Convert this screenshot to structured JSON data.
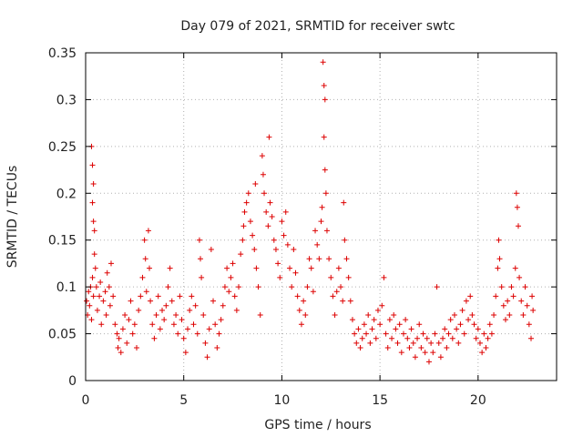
{
  "chart_data": {
    "type": "scatter",
    "title": "Day 079 of 2021, SRMTID for receiver swtc",
    "xlabel": "GPS time / hours",
    "ylabel": "SRMTID / TECUs",
    "xlim": [
      0,
      24
    ],
    "ylim": [
      0,
      0.35
    ],
    "x_ticks": [
      0,
      5,
      10,
      15,
      20
    ],
    "x_tick_labels": [
      "0",
      "5",
      "10",
      "15",
      "20"
    ],
    "y_ticks": [
      0,
      0.05,
      0.1,
      0.15,
      0.2,
      0.25,
      0.3,
      0.35
    ],
    "y_tick_labels": [
      "0",
      "0.05",
      "0.1",
      "0.15",
      "0.2",
      "0.25",
      "0.3",
      "0.35"
    ],
    "grid": true,
    "marker": "+",
    "color": "#dd0000",
    "series": [
      {
        "name": "SRMTID",
        "points": [
          [
            0.05,
            0.085
          ],
          [
            0.1,
            0.07
          ],
          [
            0.15,
            0.095
          ],
          [
            0.2,
            0.08
          ],
          [
            0.25,
            0.1
          ],
          [
            0.3,
            0.065
          ],
          [
            0.35,
            0.11
          ],
          [
            0.4,
            0.09
          ],
          [
            0.3,
            0.25
          ],
          [
            0.35,
            0.23
          ],
          [
            0.4,
            0.21
          ],
          [
            0.35,
            0.19
          ],
          [
            0.4,
            0.17
          ],
          [
            0.45,
            0.16
          ],
          [
            0.45,
            0.135
          ],
          [
            0.5,
            0.12
          ],
          [
            0.55,
            0.1
          ],
          [
            0.6,
            0.075
          ],
          [
            0.7,
            0.09
          ],
          [
            0.75,
            0.105
          ],
          [
            0.8,
            0.06
          ],
          [
            0.9,
            0.085
          ],
          [
            1.0,
            0.095
          ],
          [
            1.05,
            0.07
          ],
          [
            1.1,
            0.115
          ],
          [
            1.2,
            0.1
          ],
          [
            1.25,
            0.08
          ],
          [
            1.3,
            0.125
          ],
          [
            1.4,
            0.09
          ],
          [
            1.5,
            0.06
          ],
          [
            1.6,
            0.05
          ],
          [
            1.65,
            0.035
          ],
          [
            1.7,
            0.045
          ],
          [
            1.8,
            0.03
          ],
          [
            1.9,
            0.055
          ],
          [
            2.0,
            0.07
          ],
          [
            2.1,
            0.04
          ],
          [
            2.2,
            0.065
          ],
          [
            2.3,
            0.085
          ],
          [
            2.4,
            0.05
          ],
          [
            2.5,
            0.06
          ],
          [
            2.6,
            0.035
          ],
          [
            2.7,
            0.075
          ],
          [
            2.8,
            0.09
          ],
          [
            2.9,
            0.11
          ],
          [
            3.0,
            0.15
          ],
          [
            3.05,
            0.13
          ],
          [
            3.1,
            0.095
          ],
          [
            3.2,
            0.16
          ],
          [
            3.25,
            0.12
          ],
          [
            3.3,
            0.085
          ],
          [
            3.4,
            0.06
          ],
          [
            3.5,
            0.045
          ],
          [
            3.6,
            0.07
          ],
          [
            3.7,
            0.09
          ],
          [
            3.8,
            0.055
          ],
          [
            3.9,
            0.075
          ],
          [
            4.0,
            0.065
          ],
          [
            4.1,
            0.08
          ],
          [
            4.2,
            0.1
          ],
          [
            4.3,
            0.12
          ],
          [
            4.4,
            0.085
          ],
          [
            4.5,
            0.06
          ],
          [
            4.6,
            0.07
          ],
          [
            4.7,
            0.05
          ],
          [
            4.8,
            0.09
          ],
          [
            4.9,
            0.065
          ],
          [
            5.0,
            0.045
          ],
          [
            5.1,
            0.03
          ],
          [
            5.2,
            0.055
          ],
          [
            5.3,
            0.075
          ],
          [
            5.4,
            0.09
          ],
          [
            5.5,
            0.06
          ],
          [
            5.6,
            0.08
          ],
          [
            5.7,
            0.05
          ],
          [
            5.8,
            0.15
          ],
          [
            5.85,
            0.13
          ],
          [
            5.9,
            0.11
          ],
          [
            6.0,
            0.07
          ],
          [
            6.1,
            0.04
          ],
          [
            6.2,
            0.025
          ],
          [
            6.3,
            0.055
          ],
          [
            6.4,
            0.14
          ],
          [
            6.5,
            0.085
          ],
          [
            6.6,
            0.06
          ],
          [
            6.7,
            0.035
          ],
          [
            6.8,
            0.05
          ],
          [
            6.9,
            0.065
          ],
          [
            7.0,
            0.08
          ],
          [
            7.1,
            0.1
          ],
          [
            7.2,
            0.12
          ],
          [
            7.3,
            0.095
          ],
          [
            7.4,
            0.11
          ],
          [
            7.5,
            0.125
          ],
          [
            7.6,
            0.09
          ],
          [
            7.7,
            0.075
          ],
          [
            7.8,
            0.1
          ],
          [
            7.9,
            0.135
          ],
          [
            8.0,
            0.15
          ],
          [
            8.05,
            0.165
          ],
          [
            8.1,
            0.18
          ],
          [
            8.2,
            0.19
          ],
          [
            8.3,
            0.2
          ],
          [
            8.4,
            0.17
          ],
          [
            8.5,
            0.155
          ],
          [
            8.6,
            0.14
          ],
          [
            8.65,
            0.21
          ],
          [
            8.7,
            0.12
          ],
          [
            8.8,
            0.1
          ],
          [
            8.9,
            0.07
          ],
          [
            9.0,
            0.24
          ],
          [
            9.05,
            0.22
          ],
          [
            9.1,
            0.2
          ],
          [
            9.2,
            0.18
          ],
          [
            9.3,
            0.165
          ],
          [
            9.35,
            0.26
          ],
          [
            9.4,
            0.19
          ],
          [
            9.5,
            0.175
          ],
          [
            9.6,
            0.15
          ],
          [
            9.7,
            0.14
          ],
          [
            9.8,
            0.125
          ],
          [
            9.9,
            0.11
          ],
          [
            10.0,
            0.17
          ],
          [
            10.1,
            0.155
          ],
          [
            10.2,
            0.18
          ],
          [
            10.3,
            0.145
          ],
          [
            10.4,
            0.12
          ],
          [
            10.5,
            0.1
          ],
          [
            10.6,
            0.14
          ],
          [
            10.7,
            0.115
          ],
          [
            10.8,
            0.09
          ],
          [
            10.9,
            0.075
          ],
          [
            11.0,
            0.06
          ],
          [
            11.1,
            0.085
          ],
          [
            11.2,
            0.07
          ],
          [
            11.3,
            0.1
          ],
          [
            11.4,
            0.13
          ],
          [
            11.5,
            0.12
          ],
          [
            11.6,
            0.095
          ],
          [
            11.7,
            0.16
          ],
          [
            11.8,
            0.145
          ],
          [
            11.9,
            0.13
          ],
          [
            12.0,
            0.17
          ],
          [
            12.05,
            0.185
          ],
          [
            12.1,
            0.34
          ],
          [
            12.15,
            0.315
          ],
          [
            12.2,
            0.3
          ],
          [
            12.15,
            0.26
          ],
          [
            12.2,
            0.225
          ],
          [
            12.25,
            0.2
          ],
          [
            12.3,
            0.16
          ],
          [
            12.4,
            0.13
          ],
          [
            12.5,
            0.11
          ],
          [
            12.6,
            0.09
          ],
          [
            12.7,
            0.07
          ],
          [
            12.8,
            0.095
          ],
          [
            12.9,
            0.12
          ],
          [
            13.0,
            0.1
          ],
          [
            13.1,
            0.085
          ],
          [
            13.15,
            0.19
          ],
          [
            13.2,
            0.15
          ],
          [
            13.3,
            0.13
          ],
          [
            13.4,
            0.11
          ],
          [
            13.5,
            0.085
          ],
          [
            13.6,
            0.065
          ],
          [
            13.7,
            0.05
          ],
          [
            13.8,
            0.04
          ],
          [
            13.9,
            0.055
          ],
          [
            14.0,
            0.035
          ],
          [
            14.1,
            0.045
          ],
          [
            14.2,
            0.06
          ],
          [
            14.3,
            0.05
          ],
          [
            14.4,
            0.07
          ],
          [
            14.5,
            0.04
          ],
          [
            14.6,
            0.055
          ],
          [
            14.7,
            0.065
          ],
          [
            14.8,
            0.045
          ],
          [
            14.9,
            0.075
          ],
          [
            15.0,
            0.06
          ],
          [
            15.1,
            0.08
          ],
          [
            15.2,
            0.11
          ],
          [
            15.3,
            0.05
          ],
          [
            15.4,
            0.035
          ],
          [
            15.5,
            0.065
          ],
          [
            15.6,
            0.045
          ],
          [
            15.7,
            0.07
          ],
          [
            15.8,
            0.055
          ],
          [
            15.9,
            0.04
          ],
          [
            16.0,
            0.06
          ],
          [
            16.1,
            0.03
          ],
          [
            16.2,
            0.05
          ],
          [
            16.3,
            0.065
          ],
          [
            16.4,
            0.045
          ],
          [
            16.5,
            0.035
          ],
          [
            16.6,
            0.055
          ],
          [
            16.7,
            0.04
          ],
          [
            16.8,
            0.025
          ],
          [
            16.9,
            0.045
          ],
          [
            17.0,
            0.06
          ],
          [
            17.1,
            0.035
          ],
          [
            17.2,
            0.05
          ],
          [
            17.3,
            0.03
          ],
          [
            17.4,
            0.045
          ],
          [
            17.5,
            0.02
          ],
          [
            17.6,
            0.04
          ],
          [
            17.7,
            0.03
          ],
          [
            17.8,
            0.05
          ],
          [
            17.9,
            0.1
          ],
          [
            18.0,
            0.04
          ],
          [
            18.1,
            0.025
          ],
          [
            18.2,
            0.045
          ],
          [
            18.3,
            0.055
          ],
          [
            18.4,
            0.035
          ],
          [
            18.5,
            0.05
          ],
          [
            18.6,
            0.065
          ],
          [
            18.7,
            0.045
          ],
          [
            18.8,
            0.07
          ],
          [
            18.9,
            0.055
          ],
          [
            19.0,
            0.04
          ],
          [
            19.1,
            0.06
          ],
          [
            19.2,
            0.075
          ],
          [
            19.3,
            0.05
          ],
          [
            19.4,
            0.085
          ],
          [
            19.5,
            0.065
          ],
          [
            19.6,
            0.09
          ],
          [
            19.7,
            0.07
          ],
          [
            19.8,
            0.06
          ],
          [
            19.9,
            0.045
          ],
          [
            20.0,
            0.055
          ],
          [
            20.1,
            0.04
          ],
          [
            20.2,
            0.03
          ],
          [
            20.3,
            0.05
          ],
          [
            20.4,
            0.035
          ],
          [
            20.5,
            0.045
          ],
          [
            20.6,
            0.06
          ],
          [
            20.7,
            0.05
          ],
          [
            20.8,
            0.07
          ],
          [
            20.9,
            0.09
          ],
          [
            21.0,
            0.12
          ],
          [
            21.05,
            0.15
          ],
          [
            21.1,
            0.13
          ],
          [
            21.2,
            0.1
          ],
          [
            21.3,
            0.08
          ],
          [
            21.4,
            0.065
          ],
          [
            21.5,
            0.085
          ],
          [
            21.6,
            0.07
          ],
          [
            21.7,
            0.1
          ],
          [
            21.8,
            0.09
          ],
          [
            21.9,
            0.12
          ],
          [
            21.95,
            0.2
          ],
          [
            22.0,
            0.185
          ],
          [
            22.05,
            0.165
          ],
          [
            22.1,
            0.11
          ],
          [
            22.2,
            0.085
          ],
          [
            22.3,
            0.07
          ],
          [
            22.4,
            0.1
          ],
          [
            22.5,
            0.08
          ],
          [
            22.6,
            0.06
          ],
          [
            22.7,
            0.045
          ],
          [
            22.75,
            0.09
          ],
          [
            22.8,
            0.075
          ]
        ]
      }
    ]
  }
}
